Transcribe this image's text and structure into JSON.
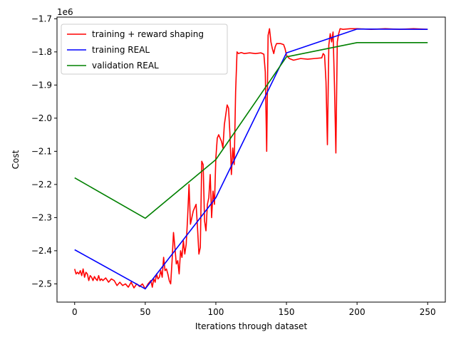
{
  "chart_data": {
    "type": "line",
    "title": "",
    "xlabel": "Iterations through dataset",
    "ylabel": "Cost",
    "y_scale_label": "1e6",
    "xlim": [
      -12.5,
      262.5
    ],
    "ylim": [
      -2.555,
      -1.695
    ],
    "x_ticks": [
      0,
      50,
      100,
      150,
      200,
      250
    ],
    "x_tick_labels": [
      "0",
      "50",
      "100",
      "150",
      "200",
      "250"
    ],
    "y_ticks": [
      -2.5,
      -2.4,
      -2.3,
      -2.2,
      -2.1,
      -2.0,
      -1.9,
      -1.8,
      -1.7
    ],
    "y_tick_labels": [
      "−2.5",
      "−2.4",
      "−2.3",
      "−2.2",
      "−2.1",
      "−2.0",
      "−1.9",
      "−1.8",
      "−1.7"
    ],
    "grid": false,
    "legend_position": "upper-left",
    "series": [
      {
        "name": "training + reward shaping",
        "color": "#ff0000",
        "points": [
          [
            0,
            -2.455
          ],
          [
            1,
            -2.47
          ],
          [
            2,
            -2.465
          ],
          [
            3,
            -2.47
          ],
          [
            4,
            -2.46
          ],
          [
            5,
            -2.475
          ],
          [
            6,
            -2.455
          ],
          [
            7,
            -2.48
          ],
          [
            8,
            -2.465
          ],
          [
            9,
            -2.47
          ],
          [
            10,
            -2.49
          ],
          [
            11,
            -2.475
          ],
          [
            12,
            -2.48
          ],
          [
            13,
            -2.49
          ],
          [
            14,
            -2.478
          ],
          [
            15,
            -2.485
          ],
          [
            16,
            -2.49
          ],
          [
            17,
            -2.475
          ],
          [
            18,
            -2.49
          ],
          [
            19,
            -2.485
          ],
          [
            20,
            -2.49
          ],
          [
            22,
            -2.482
          ],
          [
            24,
            -2.495
          ],
          [
            26,
            -2.485
          ],
          [
            28,
            -2.49
          ],
          [
            30,
            -2.505
          ],
          [
            32,
            -2.495
          ],
          [
            34,
            -2.505
          ],
          [
            36,
            -2.5
          ],
          [
            38,
            -2.51
          ],
          [
            40,
            -2.495
          ],
          [
            42,
            -2.512
          ],
          [
            44,
            -2.5
          ],
          [
            46,
            -2.508
          ],
          [
            48,
            -2.5
          ],
          [
            50,
            -2.515
          ],
          [
            52,
            -2.5
          ],
          [
            54,
            -2.49
          ],
          [
            55,
            -2.51
          ],
          [
            56,
            -2.485
          ],
          [
            57,
            -2.495
          ],
          [
            58,
            -2.47
          ],
          [
            59,
            -2.485
          ],
          [
            60,
            -2.48
          ],
          [
            61,
            -2.46
          ],
          [
            62,
            -2.48
          ],
          [
            63,
            -2.42
          ],
          [
            64,
            -2.46
          ],
          [
            65,
            -2.455
          ],
          [
            66,
            -2.47
          ],
          [
            67,
            -2.49
          ],
          [
            68,
            -2.5
          ],
          [
            69,
            -2.43
          ],
          [
            70,
            -2.345
          ],
          [
            71,
            -2.39
          ],
          [
            72,
            -2.44
          ],
          [
            73,
            -2.43
          ],
          [
            74,
            -2.47
          ],
          [
            75,
            -2.4
          ],
          [
            76,
            -2.42
          ],
          [
            77,
            -2.37
          ],
          [
            78,
            -2.41
          ],
          [
            79,
            -2.38
          ],
          [
            80,
            -2.3
          ],
          [
            81,
            -2.2
          ],
          [
            82,
            -2.32
          ],
          [
            83,
            -2.3
          ],
          [
            84,
            -2.28
          ],
          [
            85,
            -2.27
          ],
          [
            86,
            -2.26
          ],
          [
            87,
            -2.33
          ],
          [
            88,
            -2.41
          ],
          [
            89,
            -2.39
          ],
          [
            90,
            -2.13
          ],
          [
            91,
            -2.14
          ],
          [
            92,
            -2.31
          ],
          [
            93,
            -2.34
          ],
          [
            94,
            -2.26
          ],
          [
            95,
            -2.24
          ],
          [
            96,
            -2.17
          ],
          [
            97,
            -2.3
          ],
          [
            98,
            -2.22
          ],
          [
            99,
            -2.26
          ],
          [
            100,
            -2.12
          ],
          [
            101,
            -2.06
          ],
          [
            102,
            -2.05
          ],
          [
            103,
            -2.06
          ],
          [
            104,
            -2.07
          ],
          [
            105,
            -2.09
          ],
          [
            106,
            -2.02
          ],
          [
            107,
            -1.99
          ],
          [
            108,
            -1.96
          ],
          [
            109,
            -1.97
          ],
          [
            110,
            -2.05
          ],
          [
            111,
            -2.17
          ],
          [
            112,
            -2.09
          ],
          [
            113,
            -2.14
          ],
          [
            114,
            -1.92
          ],
          [
            115,
            -1.8
          ],
          [
            116,
            -1.805
          ],
          [
            118,
            -1.802
          ],
          [
            120,
            -1.805
          ],
          [
            124,
            -1.803
          ],
          [
            128,
            -1.805
          ],
          [
            132,
            -1.803
          ],
          [
            134,
            -1.807
          ],
          [
            135,
            -1.86
          ],
          [
            136,
            -2.1
          ],
          [
            137,
            -1.75
          ],
          [
            138,
            -1.73
          ],
          [
            139,
            -1.77
          ],
          [
            140,
            -1.79
          ],
          [
            141,
            -1.805
          ],
          [
            142,
            -1.785
          ],
          [
            143,
            -1.775
          ],
          [
            146,
            -1.775
          ],
          [
            148,
            -1.778
          ],
          [
            149,
            -1.79
          ],
          [
            150,
            -1.81
          ],
          [
            152,
            -1.82
          ],
          [
            155,
            -1.825
          ],
          [
            160,
            -1.82
          ],
          [
            165,
            -1.822
          ],
          [
            170,
            -1.82
          ],
          [
            175,
            -1.818
          ],
          [
            176,
            -1.805
          ],
          [
            177,
            -1.81
          ],
          [
            178,
            -1.89
          ],
          [
            179,
            -2.08
          ],
          [
            180,
            -1.78
          ],
          [
            181,
            -1.745
          ],
          [
            182,
            -1.77
          ],
          [
            183,
            -1.74
          ],
          [
            184,
            -1.9
          ],
          [
            185,
            -2.105
          ],
          [
            186,
            -1.77
          ],
          [
            187,
            -1.745
          ],
          [
            188,
            -1.73
          ],
          [
            190,
            -1.732
          ],
          [
            195,
            -1.73
          ],
          [
            200,
            -1.73
          ],
          [
            210,
            -1.732
          ],
          [
            220,
            -1.73
          ],
          [
            230,
            -1.732
          ],
          [
            240,
            -1.73
          ],
          [
            250,
            -1.732
          ]
        ]
      },
      {
        "name": "training REAL",
        "color": "#0000ff",
        "points": [
          [
            0,
            -2.397
          ],
          [
            50,
            -2.515
          ],
          [
            100,
            -2.24
          ],
          [
            150,
            -1.803
          ],
          [
            200,
            -1.731
          ],
          [
            250,
            -1.732
          ]
        ]
      },
      {
        "name": "validation REAL",
        "color": "#008000",
        "points": [
          [
            0,
            -2.18
          ],
          [
            50,
            -2.302
          ],
          [
            100,
            -2.125
          ],
          [
            150,
            -1.815
          ],
          [
            200,
            -1.772
          ],
          [
            250,
            -1.772
          ]
        ]
      }
    ]
  }
}
